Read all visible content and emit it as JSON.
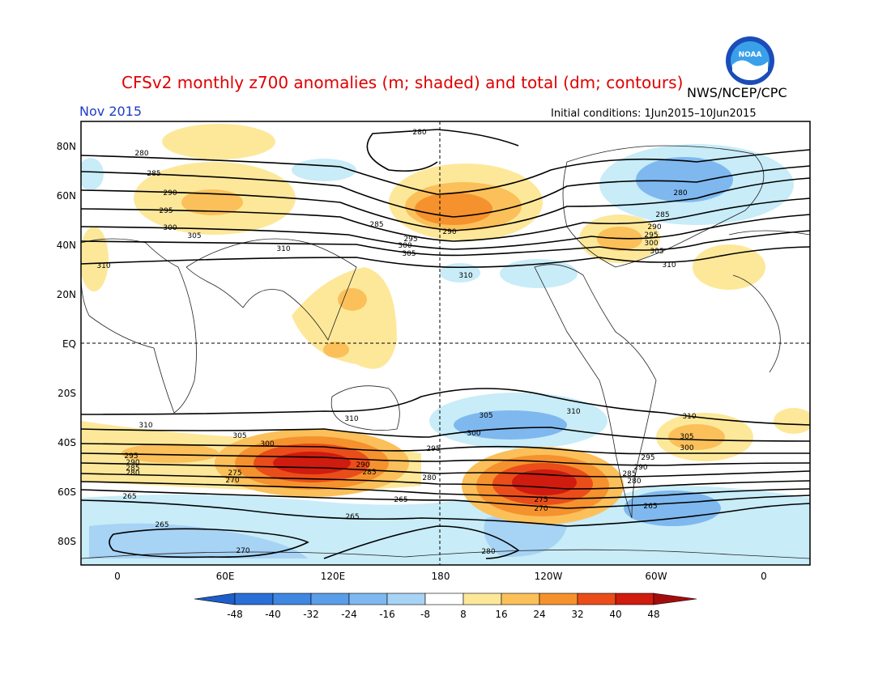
{
  "title": "CFSv2 monthly z700 anomalies (m; shaded) and total (dm; contours)",
  "org": "NWS/NCEP/CPC",
  "date": "Nov 2015",
  "initial_conditions": "Initial conditions: 1Jun2015–10Jun2015",
  "logo_text": "NOAA",
  "lat_labels": [
    "80N",
    "60N",
    "40N",
    "20N",
    "EQ",
    "20S",
    "40S",
    "60S",
    "80S"
  ],
  "lon_labels": [
    "0",
    "60E",
    "120E",
    "180",
    "120W",
    "60W",
    "0"
  ],
  "colorbar_labels": [
    "-48",
    "-40",
    "-32",
    "-24",
    "-16",
    "-8",
    "8",
    "16",
    "24",
    "32",
    "40",
    "48"
  ],
  "colorbar_colors": [
    "#2a6fd6",
    "#3f87e0",
    "#5a9de8",
    "#7fb8ef",
    "#a7d3f5",
    "#c8ecf8",
    "#ffffff",
    "#fde89a",
    "#fbc05a",
    "#f5922d",
    "#ea4d19",
    "#d01b0f",
    "#a40d0d"
  ],
  "contour_labels": [
    "280",
    "285",
    "290",
    "295",
    "300",
    "305",
    "310",
    "265",
    "270",
    "275"
  ]
}
